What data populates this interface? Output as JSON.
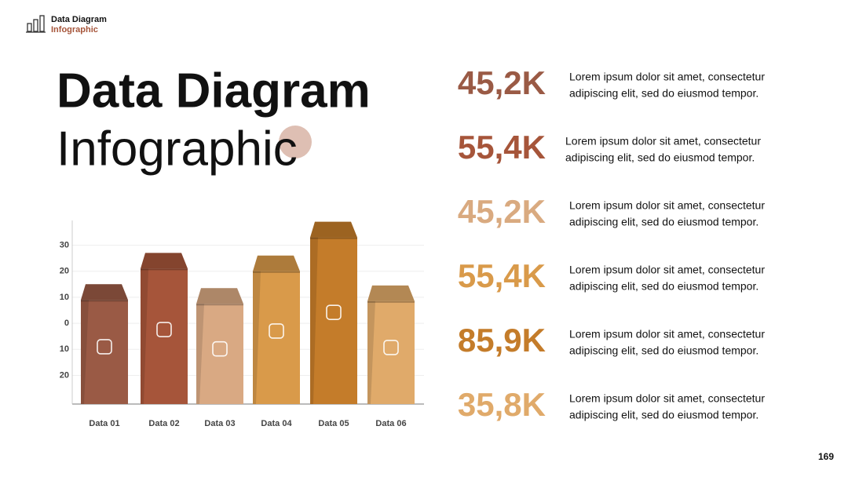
{
  "header": {
    "title": "Data Diagram",
    "subtitle": "Infographic"
  },
  "title": "Data Diagram",
  "subtitle": "Infographic",
  "page_number": "169",
  "chart_data": {
    "type": "bar",
    "categories": [
      "Data 01",
      "Data 02",
      "Data 03",
      "Data 04",
      "Data 05",
      "Data 06"
    ],
    "values": [
      9,
      21,
      7.5,
      20,
      33,
      8.5
    ],
    "colors": [
      "#9a5a45",
      "#a6553a",
      "#d9a983",
      "#d99a4a",
      "#c47c2a",
      "#e0aa6a"
    ],
    "ylim": [
      -31,
      39.5
    ],
    "yticks": [
      {
        "value": -20,
        "label": "20"
      },
      {
        "value": -10,
        "label": "10"
      },
      0,
      10,
      20,
      30
    ],
    "grid": true
  },
  "items": [
    {
      "stat": "45,2K",
      "color": "#9a5a45",
      "text": [
        "Lorem ipsum dolor sit amet, consectetur",
        "adipiscing elit, sed do eiusmod tempor."
      ]
    },
    {
      "stat": "55,4K",
      "color": "#a6553a",
      "text": [
        "Lorem ipsum dolor sit amet, consectetur",
        "adipiscing elit, sed do eiusmod tempor."
      ]
    },
    {
      "stat": "45,2K",
      "color": "#d9aa80",
      "text": [
        "Lorem ipsum dolor sit amet, consectetur",
        "adipiscing elit, sed do eiusmod tempor."
      ]
    },
    {
      "stat": "55,4K",
      "color": "#d99a4a",
      "text": [
        "Lorem ipsum dolor sit amet, consectetur",
        "adipiscing elit, sed do eiusmod tempor."
      ]
    },
    {
      "stat": "85,9K",
      "color": "#c47c2a",
      "text": [
        "Lorem ipsum dolor sit amet, consectetur",
        "adipiscing elit, sed do eiusmod tempor."
      ]
    },
    {
      "stat": "35,8K",
      "color": "#e0aa6a",
      "text": [
        "Lorem ipsum dolor sit amet, consectetur",
        "adipiscing elit, sed do eiusmod tempor."
      ]
    }
  ]
}
